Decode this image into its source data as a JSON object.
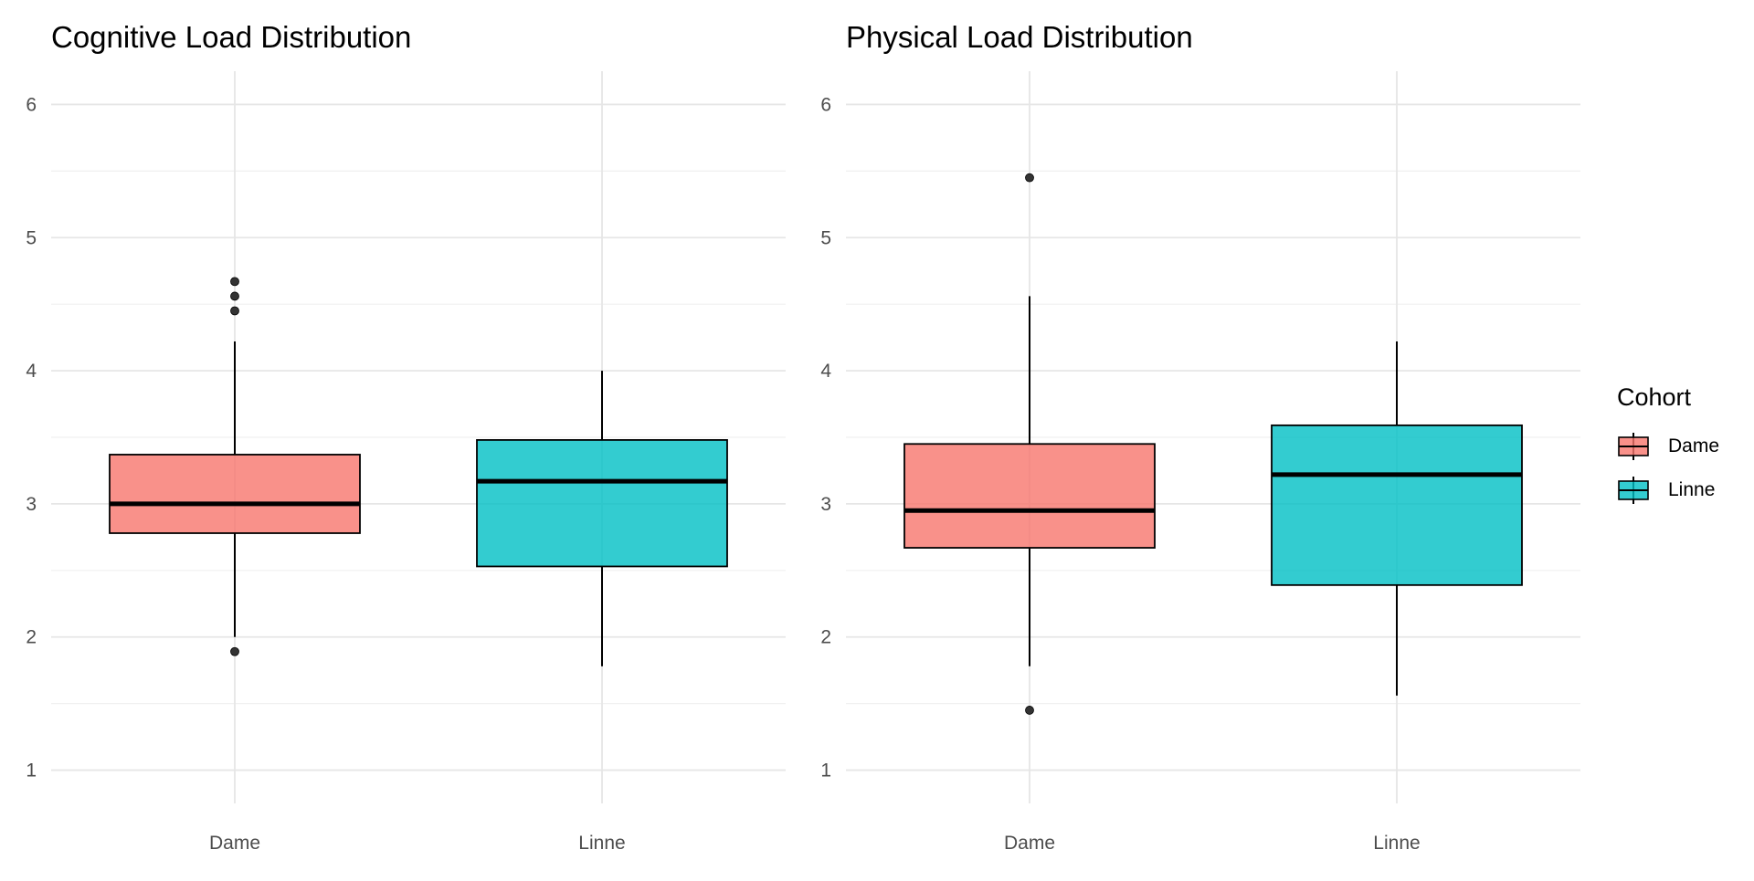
{
  "chart_data": [
    {
      "type": "boxplot",
      "title": "Cognitive Load Distribution",
      "xlabel": "",
      "ylabel": "",
      "categories": [
        "Dame",
        "Linne"
      ],
      "ylim": [
        0.75,
        6.25
      ],
      "yticks": [
        1,
        2,
        3,
        4,
        5,
        6
      ],
      "grid": true,
      "boxes": [
        {
          "category": "Dame",
          "whisker_low": 2.0,
          "q1": 2.78,
          "median": 3.0,
          "q3": 3.37,
          "whisker_high": 4.22,
          "outliers": [
            1.89,
            4.45,
            4.56,
            4.67
          ],
          "color": "#F8766D"
        },
        {
          "category": "Linne",
          "whisker_low": 1.78,
          "q1": 2.53,
          "median": 3.17,
          "q3": 3.48,
          "whisker_high": 4.0,
          "outliers": [],
          "color": "#00BFC4"
        }
      ]
    },
    {
      "type": "boxplot",
      "title": "Physical Load Distribution",
      "xlabel": "",
      "ylabel": "",
      "categories": [
        "Dame",
        "Linne"
      ],
      "ylim": [
        0.75,
        6.25
      ],
      "yticks": [
        1,
        2,
        3,
        4,
        5,
        6
      ],
      "grid": true,
      "boxes": [
        {
          "category": "Dame",
          "whisker_low": 1.78,
          "q1": 2.67,
          "median": 2.95,
          "q3": 3.45,
          "whisker_high": 4.56,
          "outliers": [
            1.45,
            5.45
          ],
          "color": "#F8766D"
        },
        {
          "category": "Linne",
          "whisker_low": 1.56,
          "q1": 2.39,
          "median": 3.22,
          "q3": 3.59,
          "whisker_high": 4.22,
          "outliers": [],
          "color": "#00BFC4"
        }
      ]
    }
  ],
  "legend": {
    "title": "Cohort",
    "position": "right",
    "items": [
      {
        "label": "Dame",
        "color": "#F8766D"
      },
      {
        "label": "Linne",
        "color": "#00BFC4"
      }
    ]
  }
}
